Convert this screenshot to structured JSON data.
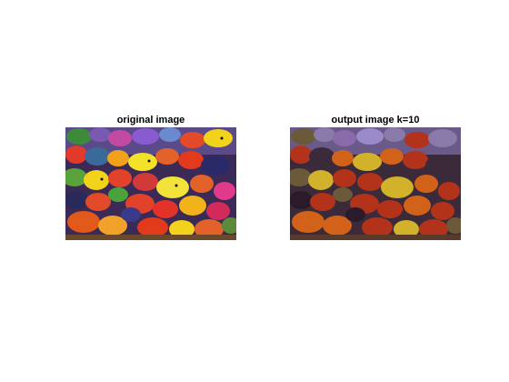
{
  "figure": {
    "panels": [
      {
        "title": "original image",
        "content": "colorful tropical fish photograph"
      },
      {
        "title": "output image k=10",
        "content": "color-quantized fish photograph"
      }
    ]
  }
}
